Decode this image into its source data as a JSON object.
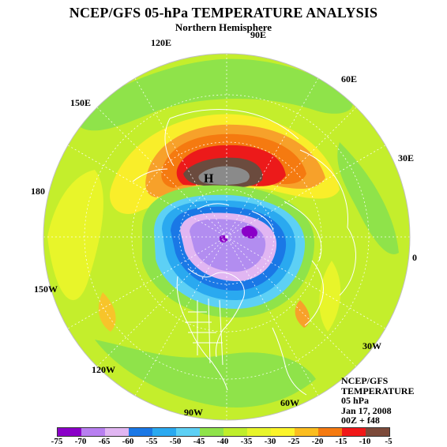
{
  "title": "NCEP/GFS 05-hPa TEMPERATURE ANALYSIS",
  "subtitle": "Northern Hemisphere",
  "longitude_labels": {
    "lon_90e": "90E",
    "lon_120e": "120E",
    "lon_60e": "60E",
    "lon_150e": "150E",
    "lon_30e": "30E",
    "lon_180": "180",
    "lon_0": "0",
    "lon_150w": "150W",
    "lon_30w": "30W",
    "lon_120w": "120W",
    "lon_90w": "90W",
    "lon_60w": "60W"
  },
  "high_marker": "H",
  "info_block": {
    "line1": "NCEP/GFS",
    "line2": "TEMPERATURE",
    "line3": "05 hPa",
    "line4": "Jan 17, 2008",
    "line5": "00Z + f48"
  },
  "colorbar": {
    "ticks": [
      "-75",
      "-70",
      "-65",
      "-60",
      "-55",
      "-50",
      "-45",
      "-40",
      "-35",
      "-30",
      "-25",
      "-20",
      "-15",
      "-10",
      "-5"
    ],
    "colors": [
      "#8a00c8",
      "#b87ff0",
      "#e1b6f2",
      "#1a78e6",
      "#2aa9f0",
      "#5dd0f5",
      "#8fe34a",
      "#bfee2a",
      "#e8f52a",
      "#fbf42a",
      "#fbbd1f",
      "#f57a10",
      "#f01818",
      "#7c4a3a",
      "#8a8a8a"
    ]
  },
  "colors": {
    "background_field": "#c4ee2c",
    "warm_band": "#f7a12a",
    "hot_core": "#ec1a1a",
    "high_core": "#6b4b3e",
    "cold_core": "#b28df0",
    "coast_lines": "#ffffff"
  }
}
